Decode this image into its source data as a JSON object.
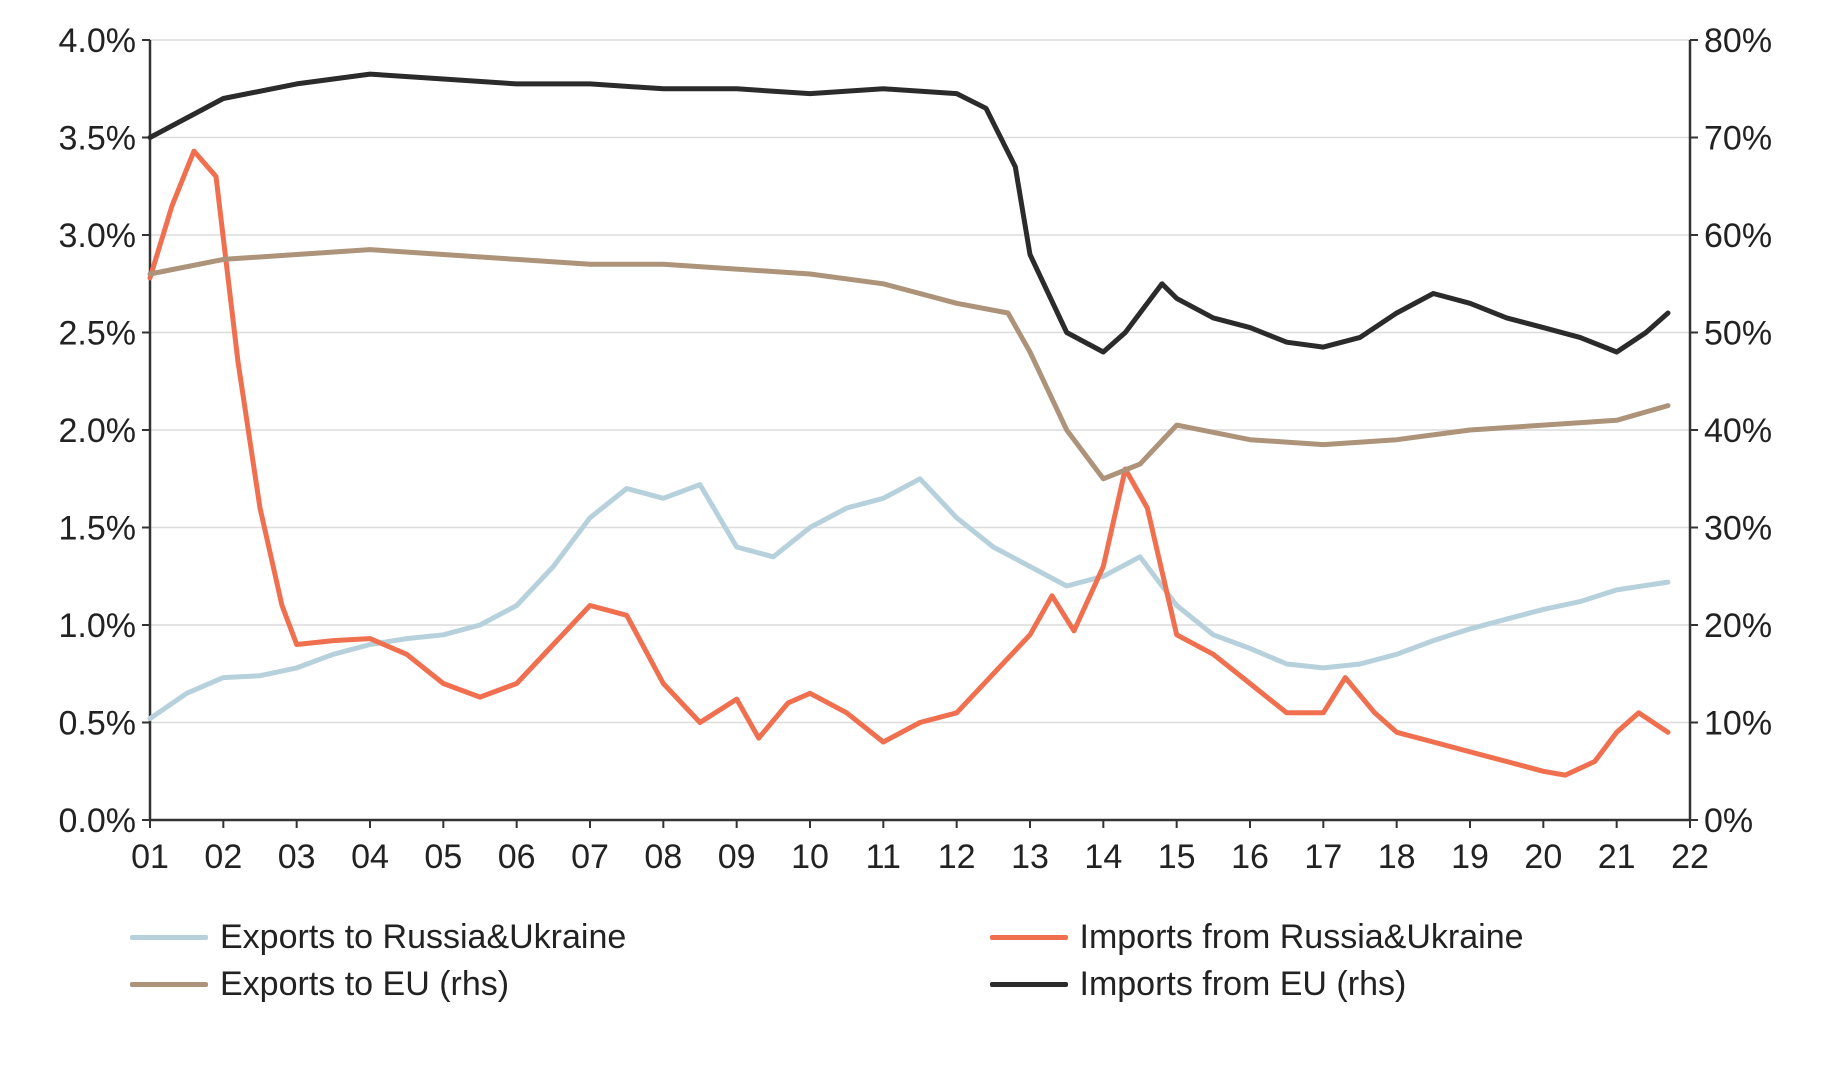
{
  "chart": {
    "type": "line",
    "background_color": "#ffffff",
    "grid_color": "#dcdcdc",
    "axis_color": "#333333",
    "tick_fontsize": 34,
    "tick_color": "#222222",
    "legend_fontsize": 34,
    "line_width": 5,
    "x": {
      "labels": [
        "01",
        "02",
        "03",
        "04",
        "05",
        "06",
        "07",
        "08",
        "09",
        "10",
        "11",
        "12",
        "13",
        "14",
        "15",
        "16",
        "17",
        "18",
        "19",
        "20",
        "21",
        "22"
      ],
      "min": 2001,
      "max": 2022
    },
    "left_axis": {
      "min": 0.0,
      "max": 4.0,
      "tick_step": 0.5,
      "suffix": "%",
      "decimals": 1
    },
    "right_axis": {
      "min": 0,
      "max": 80,
      "tick_step": 10,
      "suffix": "%",
      "decimals": 0
    },
    "series": [
      {
        "id": "exports_ru_ua",
        "label": "Exports to Russia&Ukraine",
        "color": "#b7d1dc",
        "axis": "left",
        "x": [
          2001,
          2001.5,
          2002,
          2002.5,
          2003,
          2003.5,
          2004,
          2004.5,
          2005,
          2005.5,
          2006,
          2006.5,
          2007,
          2007.5,
          2008,
          2008.5,
          2009,
          2009.5,
          2010,
          2010.5,
          2011,
          2011.5,
          2012,
          2012.5,
          2013,
          2013.5,
          2014,
          2014.5,
          2015,
          2015.5,
          2016,
          2016.5,
          2017,
          2017.5,
          2018,
          2018.5,
          2019,
          2019.5,
          2020,
          2020.5,
          2021,
          2021.7
        ],
        "y": [
          0.52,
          0.65,
          0.73,
          0.74,
          0.78,
          0.85,
          0.9,
          0.93,
          0.95,
          1.0,
          1.1,
          1.3,
          1.55,
          1.7,
          1.65,
          1.72,
          1.4,
          1.35,
          1.5,
          1.6,
          1.65,
          1.75,
          1.55,
          1.4,
          1.3,
          1.2,
          1.25,
          1.35,
          1.1,
          0.95,
          0.88,
          0.8,
          0.78,
          0.8,
          0.85,
          0.92,
          0.98,
          1.03,
          1.08,
          1.12,
          1.18,
          1.22
        ]
      },
      {
        "id": "imports_ru_ua",
        "label": "Imports from Russia&Ukraine",
        "color": "#f06f4f",
        "axis": "left",
        "x": [
          2001,
          2001.3,
          2001.6,
          2001.9,
          2002.2,
          2002.5,
          2002.8,
          2003,
          2003.5,
          2004,
          2004.5,
          2005,
          2005.5,
          2006,
          2006.5,
          2007,
          2007.5,
          2008,
          2008.5,
          2009,
          2009.3,
          2009.7,
          2010,
          2010.5,
          2011,
          2011.5,
          2012,
          2012.5,
          2013,
          2013.3,
          2013.6,
          2014,
          2014.3,
          2014.6,
          2015,
          2015.5,
          2016,
          2016.5,
          2017,
          2017.3,
          2017.7,
          2018,
          2018.5,
          2019,
          2019.5,
          2020,
          2020.3,
          2020.7,
          2021,
          2021.3,
          2021.7
        ],
        "y": [
          2.78,
          3.15,
          3.43,
          3.3,
          2.35,
          1.6,
          1.1,
          0.9,
          0.92,
          0.93,
          0.85,
          0.7,
          0.63,
          0.7,
          0.9,
          1.1,
          1.05,
          0.7,
          0.5,
          0.62,
          0.42,
          0.6,
          0.65,
          0.55,
          0.4,
          0.5,
          0.55,
          0.75,
          0.95,
          1.15,
          0.97,
          1.3,
          1.8,
          1.6,
          0.95,
          0.85,
          0.7,
          0.55,
          0.55,
          0.73,
          0.55,
          0.45,
          0.4,
          0.35,
          0.3,
          0.25,
          0.23,
          0.3,
          0.45,
          0.55,
          0.45
        ]
      },
      {
        "id": "exports_eu",
        "label": "Exports to EU (rhs)",
        "color": "#ac9379",
        "axis": "right",
        "x": [
          2001,
          2002,
          2003,
          2004,
          2005,
          2006,
          2007,
          2008,
          2009,
          2010,
          2011,
          2012,
          2012.7,
          2013,
          2013.5,
          2014,
          2014.5,
          2015,
          2016,
          2017,
          2018,
          2019,
          2020,
          2021,
          2021.7
        ],
        "y": [
          56,
          57.5,
          58,
          58.5,
          58,
          57.5,
          57,
          57,
          56.5,
          56,
          55,
          53,
          52,
          48,
          40,
          35,
          36.5,
          40.5,
          39,
          38.5,
          39,
          40,
          40.5,
          41,
          42.5
        ]
      },
      {
        "id": "imports_eu",
        "label": "Imports from EU (rhs)",
        "color": "#2b2b2b",
        "axis": "right",
        "x": [
          2001,
          2001.5,
          2002,
          2003,
          2004,
          2005,
          2006,
          2007,
          2008,
          2009,
          2010,
          2011,
          2012,
          2012.4,
          2012.8,
          2013,
          2013.5,
          2014,
          2014.3,
          2014.8,
          2015,
          2015.5,
          2016,
          2016.5,
          2017,
          2017.5,
          2018,
          2018.5,
          2019,
          2019.5,
          2020,
          2020.5,
          2021,
          2021.4,
          2021.7
        ],
        "y": [
          70,
          72,
          74,
          75.5,
          76.5,
          76,
          75.5,
          75.5,
          75,
          75,
          74.5,
          75,
          74.5,
          73,
          67,
          58,
          50,
          48,
          50,
          55,
          53.5,
          51.5,
          50.5,
          49,
          48.5,
          49.5,
          52,
          54,
          53,
          51.5,
          50.5,
          49.5,
          48,
          50,
          52
        ]
      }
    ],
    "legend": {
      "order": [
        "exports_ru_ua",
        "imports_ru_ua",
        "exports_eu",
        "imports_eu"
      ]
    }
  }
}
